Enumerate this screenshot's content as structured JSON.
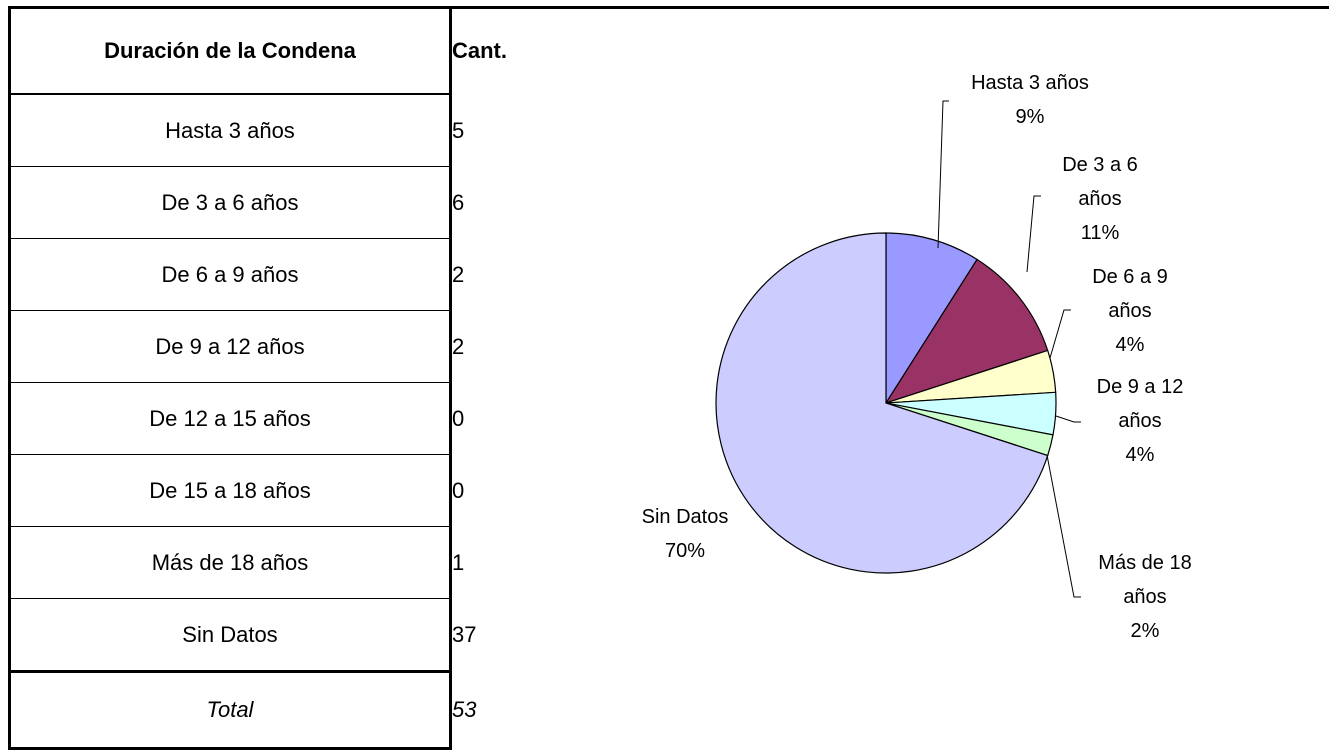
{
  "table": {
    "header": [
      "Duración de la Condena",
      "Cant."
    ],
    "rows": [
      [
        "Hasta 3 años",
        5
      ],
      [
        "De 3 a 6 años",
        6
      ],
      [
        "De 6 a 9 años",
        2
      ],
      [
        "De 9 a 12 años",
        2
      ],
      [
        "De 12 a 15 años",
        0
      ],
      [
        "De 15 a 18 años",
        0
      ],
      [
        "Más de 18 años",
        1
      ],
      [
        "Sin Datos",
        37
      ]
    ],
    "total": [
      "Total",
      53
    ]
  },
  "chart_data": {
    "type": "pie",
    "categories": [
      "Hasta 3 años",
      "De 3 a 6 años",
      "De 6 a 9 años",
      "De 9 a 12 años",
      "Más de 18 años",
      "Sin Datos"
    ],
    "values": [
      9,
      11,
      4,
      4,
      2,
      70
    ],
    "value_labels": [
      "9%",
      "11%",
      "4%",
      "4%",
      "2%",
      "70%"
    ],
    "colors": [
      "#9999ff",
      "#993366",
      "#ffffcc",
      "#ccffff",
      "#ccffcc",
      "#ccccff"
    ]
  }
}
